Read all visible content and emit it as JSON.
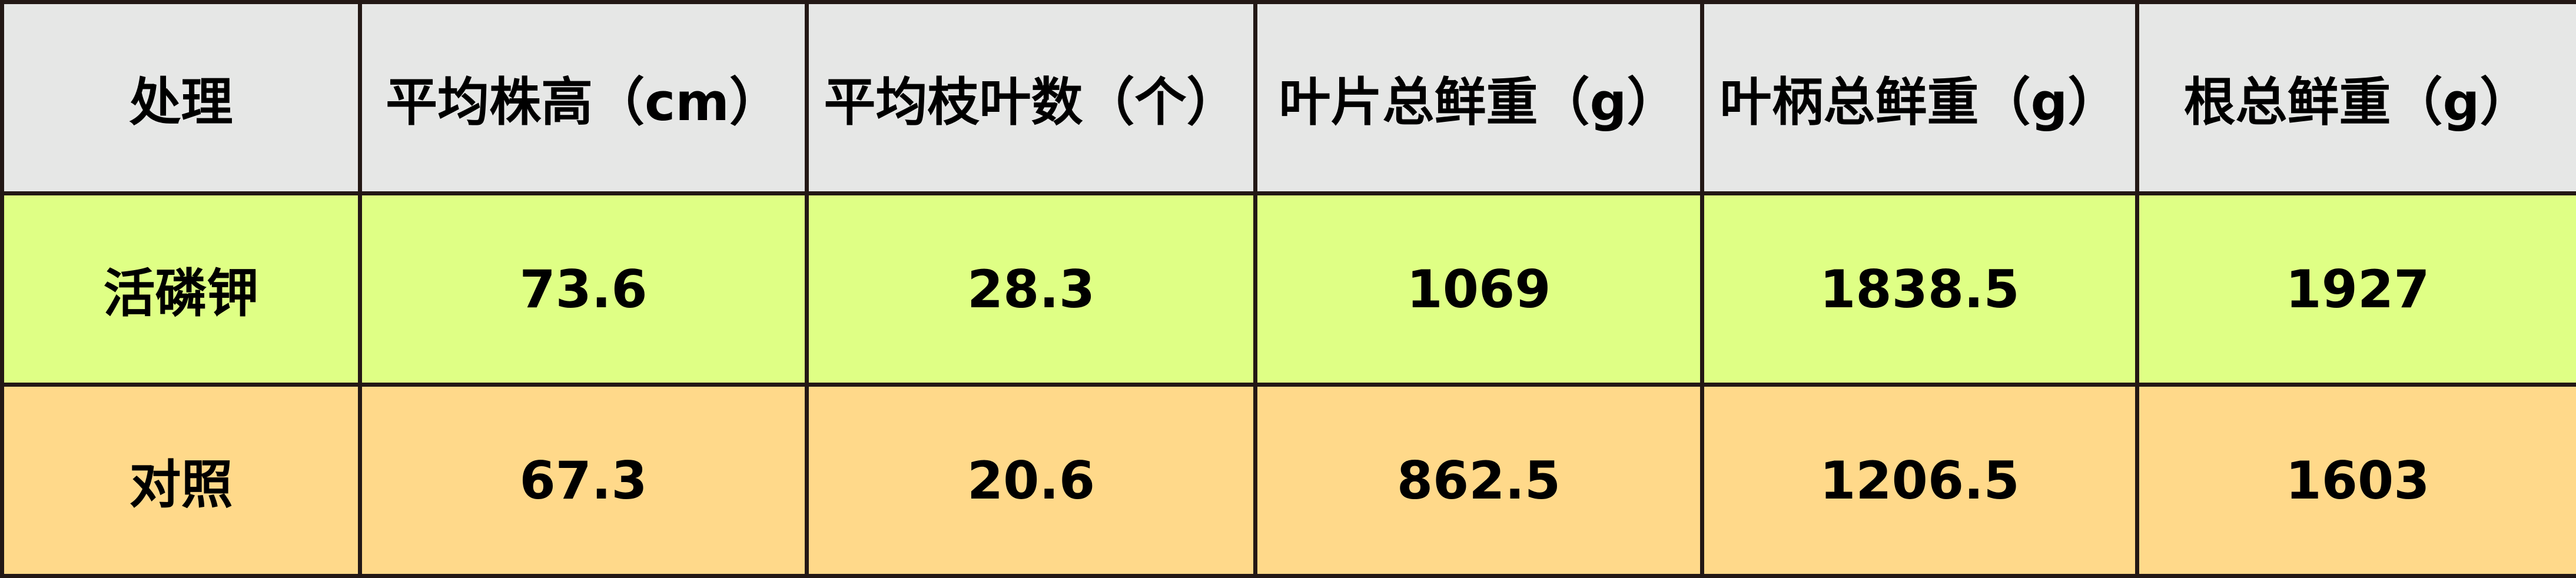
{
  "table": {
    "headers": [
      "处理",
      "平均株高（cm）",
      "平均枝叶数（个）",
      "叶片总鲜重（g）",
      "叶柄总鲜重（g）",
      "根总鲜重（g）"
    ],
    "rows": [
      [
        "活磷钾",
        "73.6",
        "28.3",
        "1069",
        "1838.5",
        "1927"
      ],
      [
        "对照",
        "67.3",
        "20.6",
        "862.5",
        "1206.5",
        "1603"
      ]
    ],
    "colors": {
      "header_bg": "#e6e7e6",
      "row1_bg": "#dfff85",
      "row2_bg": "#ffd98a",
      "border": "#231815"
    }
  }
}
